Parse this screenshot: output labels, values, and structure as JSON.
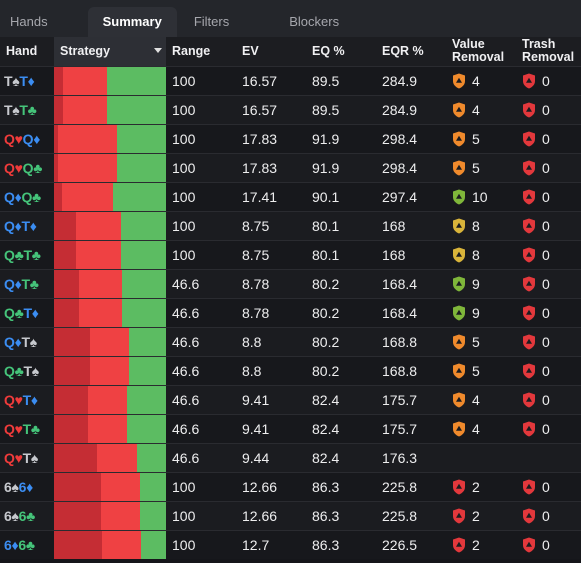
{
  "tabs": [
    "Hands",
    "Summary",
    "Filters",
    "Blockers"
  ],
  "active_tab": "Summary",
  "columns": {
    "hand": "Hand",
    "strategy": "Strategy",
    "range": "Range",
    "ev": "EV",
    "eq": "EQ %",
    "eqr": "EQR %",
    "value_removal_1": "Value",
    "value_removal_2": "Removal",
    "trash_removal_1": "Trash",
    "trash_removal_2": "Removal"
  },
  "colors": {
    "spade": "#c7c9ce",
    "heart": "#ef3b3b",
    "diamond": "#3b8df2",
    "club": "#45c47a",
    "strategy_dark_red": "#c52d34",
    "strategy_red": "#ef4143",
    "strategy_green": "#5cbc62",
    "shield_orange": "#f08a2c",
    "shield_yellow": "#d9b43a",
    "shield_green": "#7fb63a",
    "shield_red": "#e3383c"
  },
  "rows": [
    {
      "hand": [
        [
          "T",
          "♠",
          "s"
        ],
        [
          "T",
          "♦",
          "d"
        ]
      ],
      "strategy": [
        0.08,
        0.39,
        0.53
      ],
      "range": "100",
      "ev": "16.57",
      "eq": "89.5",
      "eqr": "284.9",
      "value_removal": "4",
      "value_color": "orange",
      "trash_removal": "0"
    },
    {
      "hand": [
        [
          "T",
          "♠",
          "s"
        ],
        [
          "T",
          "♣",
          "c"
        ]
      ],
      "strategy": [
        0.08,
        0.39,
        0.53
      ],
      "range": "100",
      "ev": "16.57",
      "eq": "89.5",
      "eqr": "284.9",
      "value_removal": "4",
      "value_color": "orange",
      "trash_removal": "0"
    },
    {
      "hand": [
        [
          "Q",
          "♥",
          "h"
        ],
        [
          "Q",
          "♦",
          "d"
        ]
      ],
      "strategy": [
        0.04,
        0.52,
        0.44
      ],
      "range": "100",
      "ev": "17.83",
      "eq": "91.9",
      "eqr": "298.4",
      "value_removal": "5",
      "value_color": "orange",
      "trash_removal": "0"
    },
    {
      "hand": [
        [
          "Q",
          "♥",
          "h"
        ],
        [
          "Q",
          "♣",
          "c"
        ]
      ],
      "strategy": [
        0.04,
        0.52,
        0.44
      ],
      "range": "100",
      "ev": "17.83",
      "eq": "91.9",
      "eqr": "298.4",
      "value_removal": "5",
      "value_color": "orange",
      "trash_removal": "0"
    },
    {
      "hand": [
        [
          "Q",
          "♦",
          "d"
        ],
        [
          "Q",
          "♣",
          "c"
        ]
      ],
      "strategy": [
        0.07,
        0.46,
        0.47
      ],
      "range": "100",
      "ev": "17.41",
      "eq": "90.1",
      "eqr": "297.4",
      "value_removal": "10",
      "value_color": "green",
      "trash_removal": "0"
    },
    {
      "hand": [
        [
          "Q",
          "♦",
          "d"
        ],
        [
          "T",
          "♦",
          "d"
        ]
      ],
      "strategy": [
        0.2,
        0.4,
        0.4
      ],
      "range": "100",
      "ev": "8.75",
      "eq": "80.1",
      "eqr": "168",
      "value_removal": "8",
      "value_color": "yellow",
      "trash_removal": "0"
    },
    {
      "hand": [
        [
          "Q",
          "♣",
          "c"
        ],
        [
          "T",
          "♣",
          "c"
        ]
      ],
      "strategy": [
        0.2,
        0.4,
        0.4
      ],
      "range": "100",
      "ev": "8.75",
      "eq": "80.1",
      "eqr": "168",
      "value_removal": "8",
      "value_color": "yellow",
      "trash_removal": "0"
    },
    {
      "hand": [
        [
          "Q",
          "♦",
          "d"
        ],
        [
          "T",
          "♣",
          "c"
        ]
      ],
      "strategy": [
        0.22,
        0.39,
        0.39
      ],
      "range": "46.6",
      "ev": "8.78",
      "eq": "80.2",
      "eqr": "168.4",
      "value_removal": "9",
      "value_color": "green",
      "trash_removal": "0"
    },
    {
      "hand": [
        [
          "Q",
          "♣",
          "c"
        ],
        [
          "T",
          "♦",
          "d"
        ]
      ],
      "strategy": [
        0.22,
        0.39,
        0.39
      ],
      "range": "46.6",
      "ev": "8.78",
      "eq": "80.2",
      "eqr": "168.4",
      "value_removal": "9",
      "value_color": "green",
      "trash_removal": "0"
    },
    {
      "hand": [
        [
          "Q",
          "♦",
          "d"
        ],
        [
          "T",
          "♠",
          "s"
        ]
      ],
      "strategy": [
        0.32,
        0.35,
        0.33
      ],
      "range": "46.6",
      "ev": "8.8",
      "eq": "80.2",
      "eqr": "168.8",
      "value_removal": "5",
      "value_color": "orange",
      "trash_removal": "0"
    },
    {
      "hand": [
        [
          "Q",
          "♣",
          "c"
        ],
        [
          "T",
          "♠",
          "s"
        ]
      ],
      "strategy": [
        0.32,
        0.35,
        0.33
      ],
      "range": "46.6",
      "ev": "8.8",
      "eq": "80.2",
      "eqr": "168.8",
      "value_removal": "5",
      "value_color": "orange",
      "trash_removal": "0"
    },
    {
      "hand": [
        [
          "Q",
          "♥",
          "h"
        ],
        [
          "T",
          "♦",
          "d"
        ]
      ],
      "strategy": [
        0.3,
        0.35,
        0.35
      ],
      "range": "46.6",
      "ev": "9.41",
      "eq": "82.4",
      "eqr": "175.7",
      "value_removal": "4",
      "value_color": "orange",
      "trash_removal": "0"
    },
    {
      "hand": [
        [
          "Q",
          "♥",
          "h"
        ],
        [
          "T",
          "♣",
          "c"
        ]
      ],
      "strategy": [
        0.3,
        0.35,
        0.35
      ],
      "range": "46.6",
      "ev": "9.41",
      "eq": "82.4",
      "eqr": "175.7",
      "value_removal": "4",
      "value_color": "orange",
      "trash_removal": "0"
    },
    {
      "hand": [
        [
          "Q",
          "♥",
          "h"
        ],
        [
          "T",
          "♠",
          "s"
        ]
      ],
      "strategy": [
        0.38,
        0.36,
        0.26
      ],
      "range": "46.6",
      "ev": "9.44",
      "eq": "82.4",
      "eqr": "176.3",
      "value_removal": "",
      "value_color": "none",
      "trash_removal": ""
    },
    {
      "hand": [
        [
          "6",
          "♠",
          "s"
        ],
        [
          "6",
          "♦",
          "d"
        ]
      ],
      "strategy": [
        0.42,
        0.35,
        0.23
      ],
      "range": "100",
      "ev": "12.66",
      "eq": "86.3",
      "eqr": "225.8",
      "value_removal": "2",
      "value_color": "red",
      "trash_removal": "0"
    },
    {
      "hand": [
        [
          "6",
          "♠",
          "s"
        ],
        [
          "6",
          "♣",
          "c"
        ]
      ],
      "strategy": [
        0.42,
        0.35,
        0.23
      ],
      "range": "100",
      "ev": "12.66",
      "eq": "86.3",
      "eqr": "225.8",
      "value_removal": "2",
      "value_color": "red",
      "trash_removal": "0"
    },
    {
      "hand": [
        [
          "6",
          "♦",
          "d"
        ],
        [
          "6",
          "♣",
          "c"
        ]
      ],
      "strategy": [
        0.43,
        0.35,
        0.22
      ],
      "range": "100",
      "ev": "12.7",
      "eq": "86.3",
      "eqr": "226.5",
      "value_removal": "2",
      "value_color": "red",
      "trash_removal": "0"
    }
  ]
}
